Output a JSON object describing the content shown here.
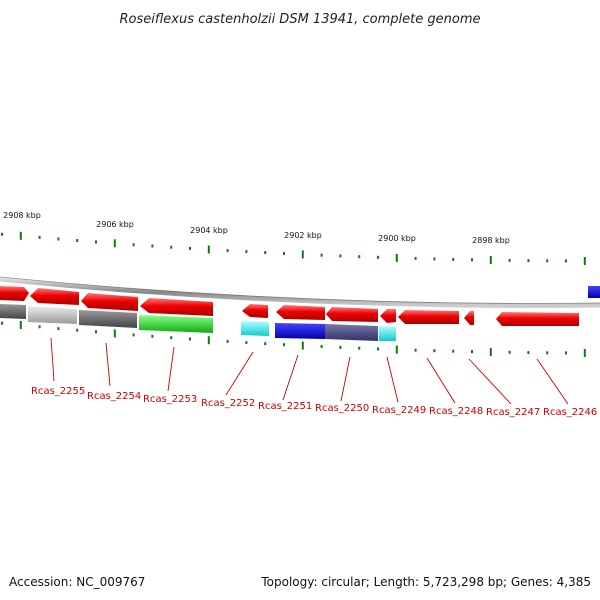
{
  "title": "Roseiflexus castenholzii DSM 13941, complete genome",
  "footer": {
    "accession": "Accession: NC_009767",
    "topology": "Topology: circular; Length: 5,723,298 bp; Genes: 4,385"
  },
  "kbp_labels": [
    "2908 kbp",
    "2906 kbp",
    "2904 kbp",
    "2902 kbp",
    "2900 kbp",
    "2898 kbp"
  ],
  "gene_labels": [
    "Rcas_2255",
    "Rcas_2254",
    "Rcas_2253",
    "Rcas_2252",
    "Rcas_2251",
    "Rcas_2250",
    "Rcas_2249",
    "Rcas_2248",
    "Rcas_2247",
    "Rcas_2246"
  ],
  "colors": {
    "gene_red": "#ee0000",
    "backbone": "#999999",
    "tick": "#117711",
    "label": "#cc0000",
    "grey_light": "#bbbbbb",
    "grey_dark": "#666666",
    "green": "#22cc22",
    "cyan": "#22dddd",
    "blue": "#1111cc",
    "slate": "#444488"
  }
}
